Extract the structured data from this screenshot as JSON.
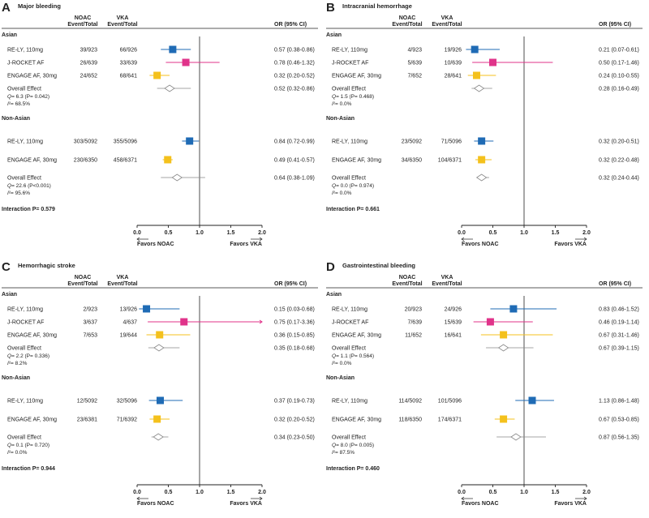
{
  "colors": {
    "re_ly": "#1f6bb5",
    "j_rocket": "#e0338a",
    "engage": "#f4c11c",
    "overall": "#888888",
    "axis": "#222222",
    "text": "#222222"
  },
  "chart_data": [
    {
      "type": "forest",
      "letter": "A",
      "title": "Major bleeding",
      "col_headers": {
        "noac_1": "NOAC",
        "noac_2": "Event/Total",
        "vka_1": "VKA",
        "vka_2": "Event/Total",
        "or": "OR (95% CI)"
      },
      "xlim": [
        0,
        2
      ],
      "ticks": [
        "0.0",
        "0.5",
        "1.0",
        "1.5",
        "2.0"
      ],
      "favors_left": "Favors NOAC",
      "favors_right": "Favors VKA",
      "interaction": "Interaction P= 0.579",
      "groups": [
        {
          "name": "Asian",
          "rows": [
            {
              "study": "RE-LY, 110mg",
              "noac": "39/923",
              "vka": "66/926",
              "or_text": "0.57 (0.38-0.86)",
              "or": 0.57,
              "lo": 0.38,
              "hi": 0.86,
              "color_key": "re_ly"
            },
            {
              "study": "J-ROCKET AF",
              "noac": "26/639",
              "vka": "33/639",
              "or_text": "0.78 (0.46-1.32)",
              "or": 0.78,
              "lo": 0.46,
              "hi": 1.32,
              "color_key": "j_rocket"
            },
            {
              "study": "ENGAGE AF, 30mg",
              "noac": "24/652",
              "vka": "68/641",
              "or_text": "0.32 (0.20-0.52)",
              "or": 0.32,
              "lo": 0.2,
              "hi": 0.52,
              "color_key": "engage"
            }
          ],
          "overall": {
            "label": "Overall Effect",
            "or_text": "0.52 (0.32-0.86)",
            "or": 0.52,
            "lo": 0.32,
            "hi": 0.86
          },
          "het": [
            "Q= 6.3 (P= 0.042)",
            "I²= 68.5%"
          ]
        },
        {
          "name": "Non-Asian",
          "rows": [
            {
              "study": "RE-LY, 110mg",
              "noac": "303/5092",
              "vka": "355/5096",
              "or_text": "0.84 (0.72-0.99)",
              "or": 0.84,
              "lo": 0.72,
              "hi": 0.99,
              "color_key": "re_ly"
            },
            {
              "study": "ENGAGE AF, 30mg",
              "noac": "230/6350",
              "vka": "458/6371",
              "or_text": "0.49 (0.41-0.57)",
              "or": 0.49,
              "lo": 0.41,
              "hi": 0.57,
              "color_key": "engage"
            }
          ],
          "overall": {
            "label": "Overall Effect",
            "or_text": "0.64 (0.38-1.09)",
            "or": 0.64,
            "lo": 0.38,
            "hi": 1.09
          },
          "het": [
            "Q= 22.6 (P<0.001)",
            "I²= 95.6%"
          ]
        }
      ]
    },
    {
      "type": "forest",
      "letter": "B",
      "title": "Intracranial hemorrhage",
      "col_headers": {
        "noac_1": "NOAC",
        "noac_2": "Event/Total",
        "vka_1": "VKA",
        "vka_2": "Event/Total",
        "or": "OR (95% CI)"
      },
      "xlim": [
        0,
        2
      ],
      "ticks": [
        "0.0",
        "0.5",
        "1.0",
        "1.5",
        "2.0"
      ],
      "favors_left": "Favors NOAC",
      "favors_right": "Favors VKA",
      "interaction": "Interaction P= 0.661",
      "groups": [
        {
          "name": "Asian",
          "rows": [
            {
              "study": "RE-LY, 110mg",
              "noac": "4/923",
              "vka": "19/926",
              "or_text": "0.21 (0.07-0.61)",
              "or": 0.21,
              "lo": 0.07,
              "hi": 0.61,
              "color_key": "re_ly"
            },
            {
              "study": "J-ROCKET AF",
              "noac": "5/639",
              "vka": "10/639",
              "or_text": "0.50 (0.17-1.46)",
              "or": 0.5,
              "lo": 0.17,
              "hi": 1.46,
              "color_key": "j_rocket"
            },
            {
              "study": "ENGAGE AF, 30mg",
              "noac": "7/652",
              "vka": "28/641",
              "or_text": "0.24 (0.10-0.55)",
              "or": 0.24,
              "lo": 0.1,
              "hi": 0.55,
              "color_key": "engage"
            }
          ],
          "overall": {
            "label": "Overall Effect",
            "or_text": "0.28 (0.16-0.49)",
            "or": 0.28,
            "lo": 0.16,
            "hi": 0.49
          },
          "het": [
            "Q= 1.5 (P= 0.468)",
            "I²= 0.0%"
          ]
        },
        {
          "name": "Non-Asian",
          "rows": [
            {
              "study": "RE-LY, 110mg",
              "noac": "23/5092",
              "vka": "71/5096",
              "or_text": "0.32 (0.20-0.51)",
              "or": 0.32,
              "lo": 0.2,
              "hi": 0.51,
              "color_key": "re_ly"
            },
            {
              "study": "ENGAGE AF, 30mg",
              "noac": "34/6350",
              "vka": "104/6371",
              "or_text": "0.32 (0.22-0.48)",
              "or": 0.32,
              "lo": 0.22,
              "hi": 0.48,
              "color_key": "engage"
            }
          ],
          "overall": {
            "label": "Overall Effect",
            "or_text": "0.32 (0.24-0.44)",
            "or": 0.32,
            "lo": 0.24,
            "hi": 0.44
          },
          "het": [
            "Q= 0.0 (P= 0.974)",
            "I²= 0.0%"
          ]
        }
      ]
    },
    {
      "type": "forest",
      "letter": "C",
      "title": "Hemorrhagic stroke",
      "col_headers": {
        "noac_1": "NOAC",
        "noac_2": "Event/Total",
        "vka_1": "VKA",
        "vka_2": "Event/Total",
        "or": "OR (95% CI)"
      },
      "xlim": [
        0,
        2
      ],
      "ticks": [
        "0.0",
        "0.5",
        "1.0",
        "1.5",
        "2.0"
      ],
      "favors_left": "Favors NOAC",
      "favors_right": "Favors VKA",
      "interaction": "Interaction P= 0.944",
      "groups": [
        {
          "name": "Asian",
          "rows": [
            {
              "study": "RE-LY, 110mg",
              "noac": "2/923",
              "vka": "13/926",
              "or_text": "0.15 (0.03-0.68)",
              "or": 0.15,
              "lo": 0.03,
              "hi": 0.68,
              "color_key": "re_ly"
            },
            {
              "study": "J-ROCKET AF",
              "noac": "3/637",
              "vka": "4/637",
              "or_text": "0.75 (0.17-3.36)",
              "or": 0.75,
              "lo": 0.17,
              "hi": 3.36,
              "color_key": "j_rocket"
            },
            {
              "study": "ENGAGE AF, 30mg",
              "noac": "7/653",
              "vka": "19/644",
              "or_text": "0.36 (0.15-0.85)",
              "or": 0.36,
              "lo": 0.15,
              "hi": 0.85,
              "color_key": "engage"
            }
          ],
          "overall": {
            "label": "Overall Effect",
            "or_text": "0.35 (0.18-0.68)",
            "or": 0.35,
            "lo": 0.18,
            "hi": 0.68
          },
          "het": [
            "Q= 2.2 (P= 0.336)",
            "I²= 8.2%"
          ]
        },
        {
          "name": "Non-Asian",
          "rows": [
            {
              "study": "RE-LY, 110mg",
              "noac": "12/5092",
              "vka": "32/5096",
              "or_text": "0.37 (0.19-0.73)",
              "or": 0.37,
              "lo": 0.19,
              "hi": 0.73,
              "color_key": "re_ly"
            },
            {
              "study": "ENGAGE AF, 30mg",
              "noac": "23/6381",
              "vka": "71/6392",
              "or_text": "0.32 (0.20-0.52)",
              "or": 0.32,
              "lo": 0.2,
              "hi": 0.52,
              "color_key": "engage"
            }
          ],
          "overall": {
            "label": "Overall Effect",
            "or_text": "0.34 (0.23-0.50)",
            "or": 0.34,
            "lo": 0.23,
            "hi": 0.5
          },
          "het": [
            "Q= 0.1 (P= 0.720)",
            "I²= 0.0%"
          ]
        }
      ]
    },
    {
      "type": "forest",
      "letter": "D",
      "title": "Gastrointestinal bleeding",
      "col_headers": {
        "noac_1": "NOAC",
        "noac_2": "Event/Total",
        "vka_1": "VKA",
        "vka_2": "Event/Total",
        "or": "OR (95% CI)"
      },
      "xlim": [
        0,
        2
      ],
      "ticks": [
        "0.0",
        "0.5",
        "1.0",
        "1.5",
        "2.0"
      ],
      "favors_left": "Favors NOAC",
      "favors_right": "Favors VKA",
      "interaction": "Interaction P= 0.460",
      "groups": [
        {
          "name": "Asian",
          "rows": [
            {
              "study": "RE-LY, 110mg",
              "noac": "20/923",
              "vka": "24/926",
              "or_text": "0.83 (0.46-1.52)",
              "or": 0.83,
              "lo": 0.46,
              "hi": 1.52,
              "color_key": "re_ly"
            },
            {
              "study": "J-ROCKET AF",
              "noac": "7/639",
              "vka": "15/639",
              "or_text": "0.46 (0.19-1.14)",
              "or": 0.46,
              "lo": 0.19,
              "hi": 1.14,
              "color_key": "j_rocket"
            },
            {
              "study": "ENGAGE AF, 30mg",
              "noac": "11/652",
              "vka": "16/641",
              "or_text": "0.67 (0.31-1.46)",
              "or": 0.67,
              "lo": 0.31,
              "hi": 1.46,
              "color_key": "engage"
            }
          ],
          "overall": {
            "label": "Overall Effect",
            "or_text": "0.67 (0.39-1.15)",
            "or": 0.67,
            "lo": 0.39,
            "hi": 1.15
          },
          "het": [
            "Q= 1.1 (P= 0.564)",
            "I²= 0.0%"
          ]
        },
        {
          "name": "Non-Asian",
          "rows": [
            {
              "study": "RE-LY, 110mg",
              "noac": "114/5092",
              "vka": "101/5096",
              "or_text": "1.13 (0.86-1.48)",
              "or": 1.13,
              "lo": 0.86,
              "hi": 1.48,
              "color_key": "re_ly"
            },
            {
              "study": "ENGAGE AF, 30mg",
              "noac": "118/6350",
              "vka": "174/6371",
              "or_text": "0.67 (0.53-0.85)",
              "or": 0.67,
              "lo": 0.53,
              "hi": 0.85,
              "color_key": "engage"
            }
          ],
          "overall": {
            "label": "Overall Effect",
            "or_text": "0.87 (0.56-1.35)",
            "or": 0.87,
            "lo": 0.56,
            "hi": 1.35
          },
          "het": [
            "Q= 8.0 (P= 0.005)",
            "I²= 87.5%"
          ]
        }
      ]
    }
  ]
}
